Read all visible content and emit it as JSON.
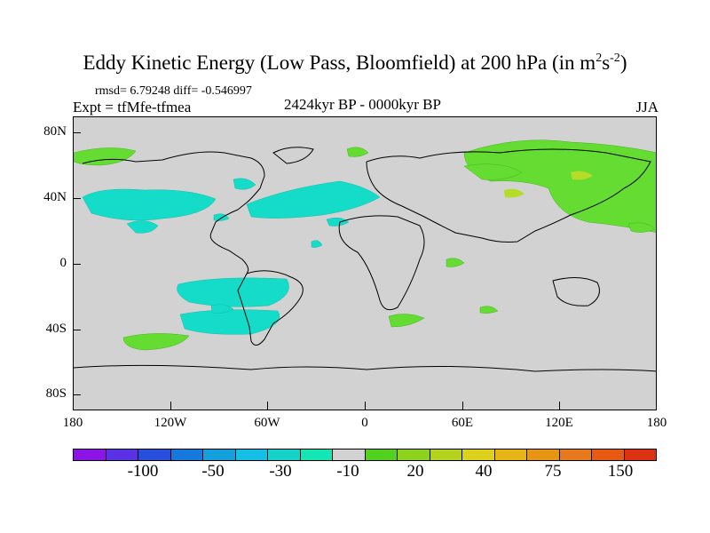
{
  "title": {
    "main": "Eddy Kinetic Energy (Low Pass, Bloomfield) at 200 hPa (in m",
    "sup1": "2",
    "mid": "s",
    "sup2": "-2",
    "end": ")"
  },
  "stats_line": "rmsd= 6.79248 diff= -0.546997",
  "expt_line": "Expt = tfMfe-tfmea",
  "period_line": "2424kyr BP - 0000kyr BP",
  "season": "JJA",
  "lat_labels": [
    "80N",
    "40N",
    "0",
    "40S",
    "80S"
  ],
  "lon_labels": [
    "180",
    "120W",
    "60W",
    "0",
    "60E",
    "120E",
    "180"
  ],
  "colorbar": {
    "colors": [
      "#8c14e6",
      "#5a32e6",
      "#2850dc",
      "#1478dc",
      "#14a0dc",
      "#14bee6",
      "#14d2c8",
      "#14e6b4",
      "#d2d2d2",
      "#50d21e",
      "#8cd21e",
      "#b4d21e",
      "#dcd21e",
      "#e6b414",
      "#e69614",
      "#e6781e",
      "#e65a14",
      "#dc3214"
    ],
    "labels": [
      "-100",
      "-50",
      "-30",
      "-10",
      "20",
      "40",
      "75",
      "150"
    ]
  },
  "legend": {
    "cyan_color": "#14dcc8",
    "green_color": "#64dc32",
    "yellowgreen_color": "#b4dc28"
  }
}
